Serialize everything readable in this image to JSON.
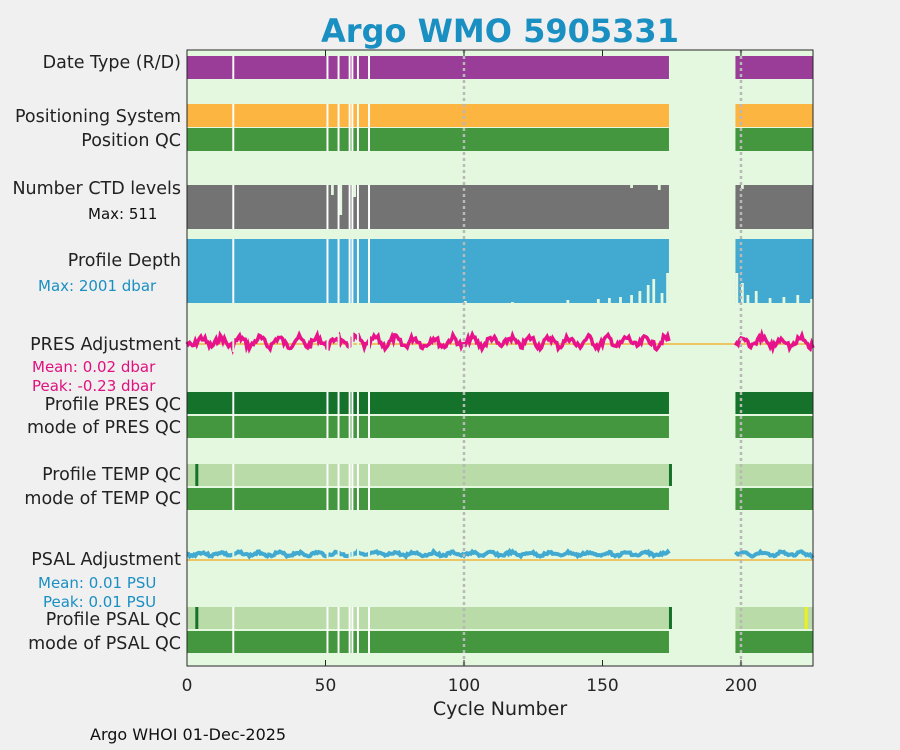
{
  "title": "Argo WMO 5905331",
  "footer": "Argo WHOI 01-Dec-2025",
  "labels": {
    "date_type": "Date Type (R/D)",
    "positioning_system": "Positioning System",
    "position_qc": "Position QC",
    "ctd_levels": "Number CTD levels",
    "ctd_max": "Max: 511",
    "profile_depth": "Profile Depth",
    "depth_max": "Max: 2001 dbar",
    "pres_adjustment": "PRES Adjustment",
    "pres_mean": "Mean: 0.02 dbar",
    "pres_peak": "Peak: -0.23 dbar",
    "profile_pres_qc": "Profile PRES QC",
    "mode_pres_qc": "mode of PRES QC",
    "profile_temp_qc": "Profile TEMP QC",
    "mode_temp_qc": "mode of TEMP QC",
    "psal_adjustment": "PSAL Adjustment",
    "psal_mean": "Mean: 0.01 PSU",
    "psal_peak": "Peak: 0.01 PSU",
    "profile_psal_qc": "Profile PSAL QC",
    "mode_psal_qc": "mode of PSAL QC"
  },
  "colors": {
    "title": "#1a8fc2",
    "background": "#e4f8e0",
    "date_type": "#9a3d98",
    "positioning": "#fbb540",
    "qc_green": "#44973f",
    "qc_dark_green": "#14722a",
    "qc_light_green": "#b9dba8",
    "ctd": "#737373",
    "depth": "#42aad0",
    "pres_adj": "#e8128a",
    "psal_adj": "#42aad0",
    "zero_line": "#f0b43c",
    "psal_flag": "#f0f018",
    "depth_label": "#1a8fc2",
    "pres_label": "#e0107e"
  },
  "chart_data": {
    "type": "bar",
    "title": "Argo WMO 5905331",
    "xlabel": "Cycle Number",
    "xlim": [
      0,
      226
    ],
    "xticks": [
      0,
      50,
      100,
      150,
      200
    ],
    "reference_lines_x": [
      100,
      200
    ],
    "data_range": [
      0,
      174
    ],
    "data_range_2": [
      198,
      226
    ],
    "missing_cycles": [
      16,
      50,
      54,
      58,
      59,
      61,
      65
    ],
    "ctd_levels_max": 511,
    "profile_depth_max_dbar": 2001,
    "pres_adjustment": {
      "mean_dbar": 0.02,
      "peak_dbar": -0.23
    },
    "psal_adjustment": {
      "mean_psu": 0.01,
      "peak_psu": 0.01
    },
    "temp_qc_dark_cycles": [
      3,
      174
    ],
    "psal_qc_dark_cycles": [
      3,
      174
    ],
    "psal_qc_flag_cycles": [
      223
    ]
  }
}
